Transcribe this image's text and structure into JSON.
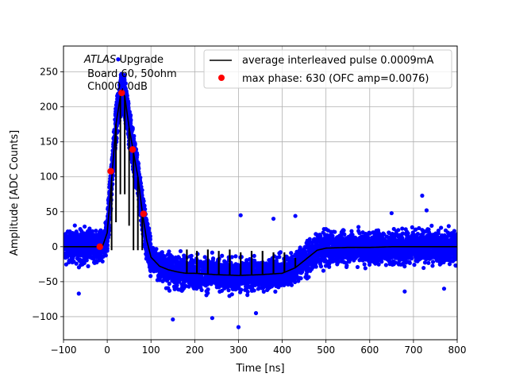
{
  "chart_data": {
    "type": "scatter",
    "title": "",
    "xlabel": "Time [ns]",
    "ylabel": "Amplitude [ADC Counts]",
    "xlim": [
      -100,
      800
    ],
    "ylim": [
      -133,
      287
    ],
    "xticks": [
      -100,
      0,
      100,
      200,
      300,
      400,
      500,
      600,
      700,
      800
    ],
    "yticks": [
      -100,
      -50,
      0,
      50,
      100,
      150,
      200,
      250
    ],
    "grid": true,
    "legend_position": "top-right",
    "annotation": {
      "line1_italic": "ATLAS",
      "line1_rest": " Upgrade",
      "line2": " Board 60, 50ohm",
      "line3": " Ch000, 0dB"
    },
    "series": [
      {
        "name": "average interleaved pulse 0.0009mA",
        "kind": "line",
        "color": "#000000",
        "x": [
          -100,
          -50,
          -25,
          -10,
          0,
          10,
          20,
          30,
          35,
          40,
          50,
          60,
          70,
          80,
          90,
          100,
          120,
          140,
          160,
          180,
          200,
          250,
          300,
          350,
          400,
          430,
          450,
          480,
          500,
          550,
          600,
          650,
          700,
          750,
          800
        ],
        "y": [
          0,
          0,
          0,
          2,
          20,
          95,
          175,
          215,
          222,
          215,
          170,
          135,
          100,
          50,
          10,
          -15,
          -28,
          -33,
          -36,
          -38,
          -38,
          -40,
          -41,
          -40,
          -38,
          -30,
          -20,
          -5,
          -2,
          -1,
          -1,
          0,
          0,
          0,
          0
        ],
        "spikes": [
          {
            "x": 182,
            "y": -4
          },
          {
            "x": 205,
            "y": -6
          },
          {
            "x": 230,
            "y": -4
          },
          {
            "x": 255,
            "y": -6
          },
          {
            "x": 280,
            "y": -4
          },
          {
            "x": 305,
            "y": -8
          },
          {
            "x": 330,
            "y": -6
          },
          {
            "x": 355,
            "y": -6
          },
          {
            "x": 380,
            "y": -8
          },
          {
            "x": 405,
            "y": -8
          },
          {
            "x": 430,
            "y": -16
          }
        ]
      },
      {
        "name": "max phase: 630 (OFC amp=0.0076)",
        "kind": "scatter",
        "color": "#ff0000",
        "x": [
          -17,
          8,
          33,
          58,
          83
        ],
        "y": [
          0,
          108,
          220,
          139,
          47
        ]
      },
      {
        "name": "",
        "kind": "scatter-band",
        "color": "#0000ff",
        "spread": 33,
        "outliers": [
          {
            "x": 25,
            "y": 268
          },
          {
            "x": 720,
            "y": 73
          },
          {
            "x": 300,
            "y": -115
          },
          {
            "x": 240,
            "y": -102
          },
          {
            "x": 150,
            "y": -104
          },
          {
            "x": 340,
            "y": -95
          },
          {
            "x": 430,
            "y": 44
          },
          {
            "x": 305,
            "y": 45
          },
          {
            "x": 380,
            "y": 40
          },
          {
            "x": 650,
            "y": 48
          },
          {
            "x": 730,
            "y": 52
          },
          {
            "x": -65,
            "y": -67
          },
          {
            "x": 680,
            "y": -64
          },
          {
            "x": 770,
            "y": -60
          }
        ]
      }
    ]
  }
}
